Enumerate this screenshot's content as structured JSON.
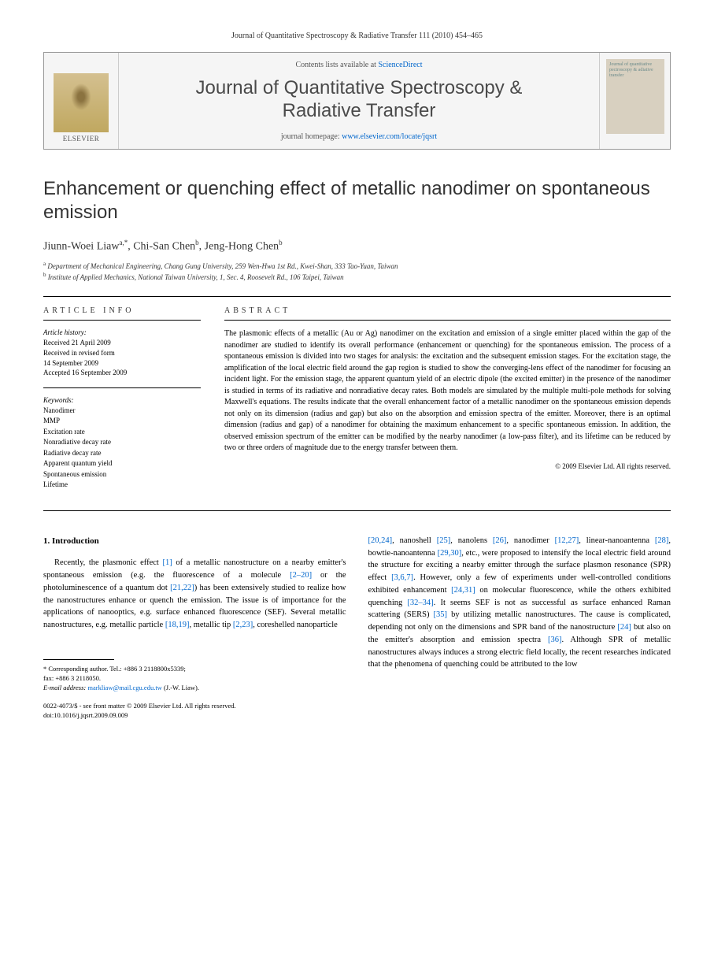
{
  "header": {
    "citation": "Journal of Quantitative Spectroscopy & Radiative Transfer 111 (2010) 454–465"
  },
  "masthead": {
    "elsevier_label": "ELSEVIER",
    "contents_prefix": "Contents lists available at ",
    "contents_link": "ScienceDirect",
    "journal_name_1": "Journal of Quantitative Spectroscopy &",
    "journal_name_2": "Radiative Transfer",
    "homepage_prefix": "journal homepage: ",
    "homepage_link": "www.elsevier.com/locate/jqsrt",
    "cover_text": "Journal of quantitative pectroscopy & adiative transfer"
  },
  "article": {
    "title": "Enhancement or quenching effect of metallic nanodimer on spontaneous emission",
    "authors_html": "Jiunn-Woei Liaw",
    "author1_sup": "a,*",
    "author2": ", Chi-San Chen",
    "author2_sup": "b",
    "author3": ", Jeng-Hong Chen",
    "author3_sup": "b",
    "affiliations": [
      {
        "sup": "a",
        "text": " Department of Mechanical Engineering, Chang Gung University, 259 Wen-Hwa 1st Rd., Kwei-Shan, 333 Tao-Yuan, Taiwan"
      },
      {
        "sup": "b",
        "text": " Institute of Applied Mechanics, National Taiwan University, 1, Sec. 4, Roosevelt Rd., 106 Taipei, Taiwan"
      }
    ]
  },
  "info": {
    "heading": "ARTICLE INFO",
    "history_label": "Article history:",
    "history": "Received 21 April 2009\nReceived in revised form\n14 September 2009\nAccepted 16 September 2009",
    "keywords_label": "Keywords:",
    "keywords": "Nanodimer\nMMP\nExcitation rate\nNonradiative decay rate\nRadiative decay rate\nApparent quantum yield\nSpontaneous emission\nLifetime"
  },
  "abstract": {
    "heading": "ABSTRACT",
    "text": "The plasmonic effects of a metallic (Au or Ag) nanodimer on the excitation and emission of a single emitter placed within the gap of the nanodimer are studied to identify its overall performance (enhancement or quenching) for the spontaneous emission. The process of a spontaneous emission is divided into two stages for analysis: the excitation and the subsequent emission stages. For the excitation stage, the amplification of the local electric field around the gap region is studied to show the converging-lens effect of the nanodimer for focusing an incident light. For the emission stage, the apparent quantum yield of an electric dipole (the excited emitter) in the presence of the nanodimer is studied in terms of its radiative and nonradiative decay rates. Both models are simulated by the multiple multi-pole methods for solving Maxwell's equations. The results indicate that the overall enhancement factor of a metallic nanodimer on the spontaneous emission depends not only on its dimension (radius and gap) but also on the absorption and emission spectra of the emitter. Moreover, there is an optimal dimension (radius and gap) of a nanodimer for obtaining the maximum enhancement to a specific spontaneous emission. In addition, the observed emission spectrum of the emitter can be modified by the nearby nanodimer (a low-pass filter), and its lifetime can be reduced by two or three orders of magnitude due to the energy transfer between them.",
    "copyright": "© 2009 Elsevier Ltd. All rights reserved."
  },
  "body": {
    "section_num": "1.",
    "section_title": " Introduction",
    "left_para": "Recently, the plasmonic effect [1] of a metallic nanostructure on a nearby emitter's spontaneous emission (e.g. the fluorescence of a molecule [2–20] or the photoluminescence of a quantum dot [21,22]) has been extensively studied to realize how the nanostructures enhance or quench the emission. The issue is of importance for the applications of nanooptics, e.g. surface enhanced fluorescence (SEF). Several metallic nanostructures, e.g. metallic particle [18,19], metallic tip [2,23], coreshelled nanoparticle",
    "right_para": "[20,24], nanoshell [25], nanolens [26], nanodimer [12,27], linear-nanoantenna [28], bowtie-nanoantenna [29,30], etc., were proposed to intensify the local electric field around the structure for exciting a nearby emitter through the surface plasmon resonance (SPR) effect [3,6,7]. However, only a few of experiments under well-controlled conditions exhibited enhancement [24,31] on molecular fluorescence, while the others exhibited quenching [32–34]. It seems SEF is not as successful as surface enhanced Raman scattering (SERS) [35] by utilizing metallic nanostructures. The cause is complicated, depending not only on the dimensions and SPR band of the nanostructure [24] but also on the emitter's absorption and emission spectra [36]. Although SPR of metallic nanostructures always induces a strong electric field locally, the recent researches indicated that the phenomena of quenching could be attributed to the low"
  },
  "footnote": {
    "corr_label": "* Corresponding author. Tel.: +886 3 2118800x5339;",
    "fax": "fax: +886 3 2118050.",
    "email_label": "E-mail address: ",
    "email": "markliaw@mail.cgu.edu.tw",
    "email_suffix": " (J.-W. Liaw)."
  },
  "doi": {
    "line1": "0022-4073/$ - see front matter © 2009 Elsevier Ltd. All rights reserved.",
    "line2": "doi:10.1016/j.jqsrt.2009.09.009"
  },
  "link_color": "#0066cc"
}
